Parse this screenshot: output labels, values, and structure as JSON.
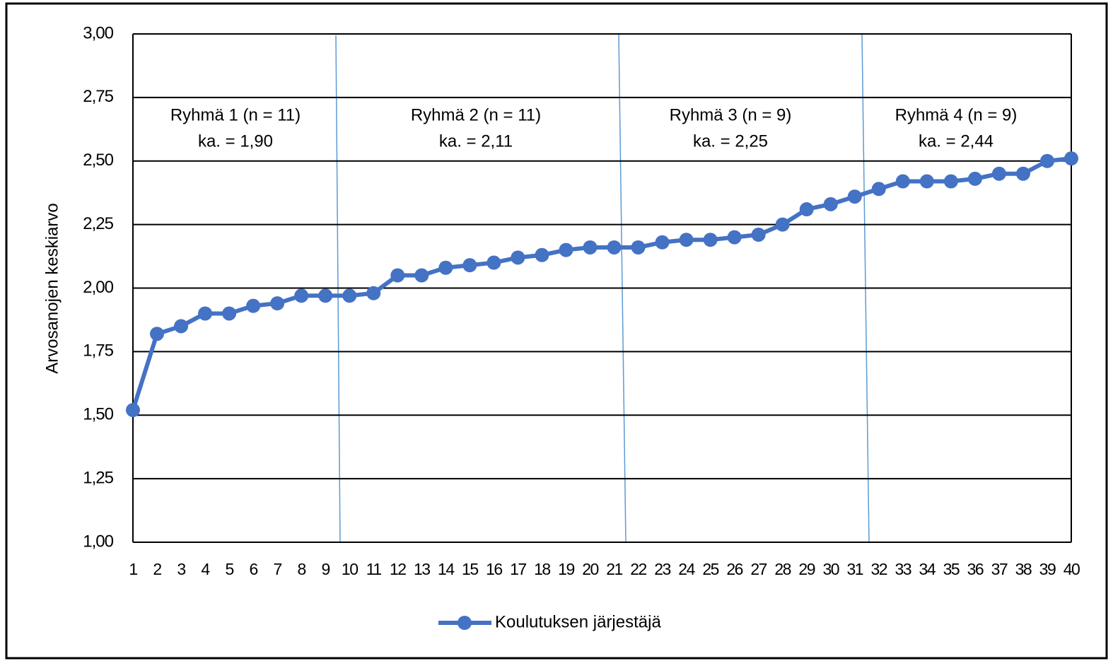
{
  "chart_data": {
    "type": "line",
    "y_label": "Arvosanojen keskiarvo",
    "categories": [
      "1",
      "2",
      "3",
      "4",
      "5",
      "6",
      "7",
      "8",
      "9",
      "10",
      "11",
      "12",
      "13",
      "14",
      "15",
      "16",
      "17",
      "18",
      "19",
      "20",
      "21",
      "22",
      "23",
      "24",
      "25",
      "26",
      "27",
      "28",
      "29",
      "30",
      "31",
      "32",
      "33",
      "34",
      "35",
      "36",
      "37",
      "38",
      "39",
      "40"
    ],
    "series": [
      {
        "name": "Koulutuksen järjestäjä",
        "color": "#4472c4",
        "values": [
          1.52,
          1.82,
          1.85,
          1.9,
          1.9,
          1.93,
          1.94,
          1.97,
          1.97,
          1.97,
          1.98,
          2.05,
          2.05,
          2.08,
          2.09,
          2.1,
          2.12,
          2.13,
          2.15,
          2.16,
          2.16,
          2.16,
          2.18,
          2.19,
          2.19,
          2.2,
          2.21,
          2.25,
          2.31,
          2.33,
          2.36,
          2.39,
          2.42,
          2.42,
          2.42,
          2.43,
          2.45,
          2.45,
          2.5,
          2.51
        ]
      }
    ],
    "ylim": [
      1,
      3
    ],
    "yticks": [
      {
        "value": 1,
        "label": "1,00"
      },
      {
        "value": 1.25,
        "label": "1,25"
      },
      {
        "value": 1.5,
        "label": "1,50"
      },
      {
        "value": 1.75,
        "label": "1,75"
      },
      {
        "value": 2,
        "label": "2,00"
      },
      {
        "value": 2.25,
        "label": "2,25"
      },
      {
        "value": 2.5,
        "label": "2,50"
      },
      {
        "value": 2.75,
        "label": "2,75"
      },
      {
        "value": 3,
        "label": "3,00"
      }
    ],
    "grid": true,
    "legend": "bottom",
    "annotations": [
      {
        "lines": [
          "Ryhmä 1 (n = 11)",
          "ka. = 1,90"
        ]
      },
      {
        "lines": [
          "Ryhmä 2 (n = 11)",
          "ka. = 2,11"
        ]
      },
      {
        "lines": [
          "Ryhmä 3 (n = 9)",
          "ka. = 2,25"
        ]
      },
      {
        "lines": [
          "Ryhmä 4 (n = 9)",
          "ka. = 2,44"
        ]
      }
    ]
  }
}
